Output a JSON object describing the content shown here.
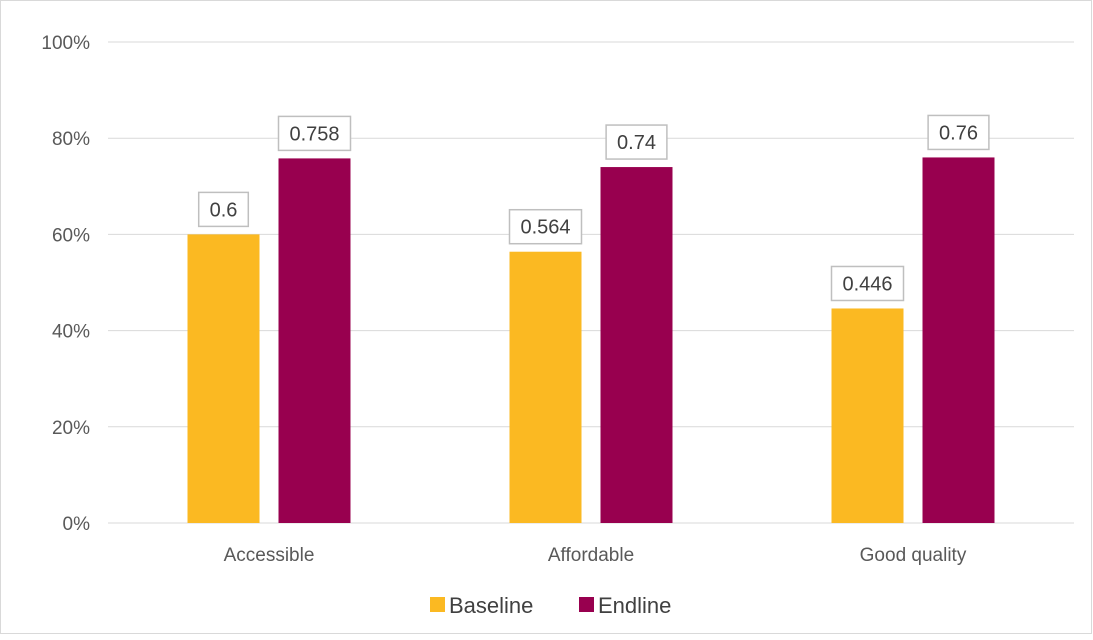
{
  "chart_data": {
    "type": "bar",
    "categories": [
      "Accessible",
      "Affordable",
      "Good quality"
    ],
    "series": [
      {
        "name": "Baseline",
        "values": [
          0.6,
          0.564,
          0.446
        ],
        "labels": [
          "0.6",
          "0.564",
          "0.446"
        ],
        "color": "#FBB922"
      },
      {
        "name": "Endline",
        "values": [
          0.758,
          0.74,
          0.76
        ],
        "labels": [
          "0.758",
          "0.74",
          "0.76"
        ],
        "color": "#98004F"
      }
    ],
    "ylim": [
      0,
      1
    ],
    "yticks": [
      0,
      0.2,
      0.4,
      0.6,
      0.8,
      1
    ],
    "ytick_labels": [
      "0%",
      "20%",
      "40%",
      "60%",
      "80%",
      "100%"
    ],
    "grid": true,
    "legend": "bottom-center",
    "title": "",
    "xlabel": "",
    "ylabel": ""
  }
}
